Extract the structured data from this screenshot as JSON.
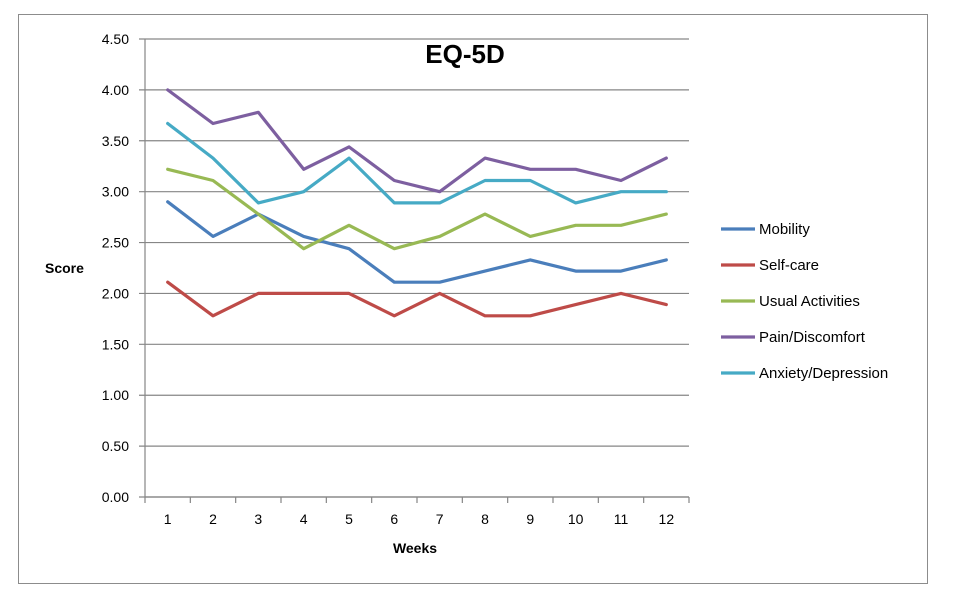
{
  "chart_data": {
    "type": "line",
    "title": "EQ-5D",
    "xlabel": "Weeks",
    "ylabel": "Score",
    "ylim": [
      0,
      4.5
    ],
    "y_ticks": [
      "0.00",
      "0.50",
      "1.00",
      "1.50",
      "2.00",
      "2.50",
      "3.00",
      "3.50",
      "4.00",
      "4.50"
    ],
    "x": [
      "1",
      "2",
      "3",
      "4",
      "5",
      "6",
      "7",
      "8",
      "9",
      "10",
      "11",
      "12"
    ],
    "grid": "horizontal",
    "legend": "right",
    "series": [
      {
        "name": "Mobility",
        "color": "#4a7ebb",
        "values": [
          2.9,
          2.56,
          2.78,
          2.56,
          2.44,
          2.11,
          2.11,
          2.22,
          2.33,
          2.22,
          2.22,
          2.33
        ]
      },
      {
        "name": "Self-care",
        "color": "#be4b48",
        "values": [
          2.11,
          1.78,
          2.0,
          2.0,
          2.0,
          1.78,
          2.0,
          1.78,
          1.78,
          1.89,
          2.0,
          1.89
        ]
      },
      {
        "name": "Usual Activities",
        "color": "#98b954",
        "values": [
          3.22,
          3.11,
          2.78,
          2.44,
          2.67,
          2.44,
          2.56,
          2.78,
          2.56,
          2.67,
          2.67,
          2.78
        ]
      },
      {
        "name": "Pain/Discomfort",
        "color": "#7d5fa0",
        "values": [
          4.0,
          3.67,
          3.78,
          3.22,
          3.44,
          3.11,
          3.0,
          3.33,
          3.22,
          3.22,
          3.11,
          3.33
        ]
      },
      {
        "name": "Anxiety/Depression",
        "color": "#46aac5",
        "values": [
          3.67,
          3.33,
          2.89,
          3.0,
          3.33,
          2.89,
          2.89,
          3.11,
          3.11,
          2.89,
          3.0,
          3.0
        ]
      }
    ]
  }
}
